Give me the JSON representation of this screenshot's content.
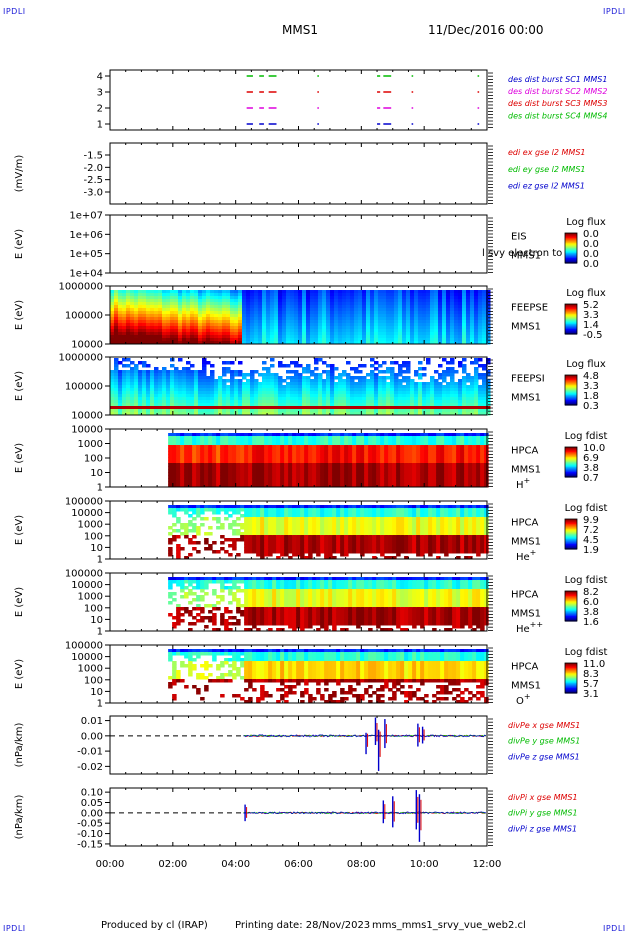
{
  "corner_label": "IPDLI",
  "header": {
    "spacecraft": "MMS1",
    "date_time": "11/Dec/2016 00:00"
  },
  "footer": {
    "produced_by": "Produced by cl (IRAP)",
    "printing_date": "Printing date: 28/Nov/2023",
    "file_name": "mms_mms1_srvy_vue_web2.cl"
  },
  "time_axis": {
    "tick_labels": [
      "00:00",
      "02:00",
      "04:00",
      "06:00",
      "08:00",
      "10:00",
      "12:00"
    ]
  },
  "chart_data": [
    {
      "type": "timeline",
      "panel": "des-dist-burst",
      "ylabel": "",
      "ytick_labels": [
        "4",
        "3",
        "2",
        "1"
      ],
      "legend": [
        {
          "label": "des dist burst SC1 MMS1",
          "color": "#0000cc"
        },
        {
          "label": "des dist burst SC2 MMS2",
          "color": "#dd00dd"
        },
        {
          "label": "des dist burst SC3 MMS3",
          "color": "#dd0000"
        },
        {
          "label": "des dist burst SC4 MMS4",
          "color": "#00bb00"
        }
      ],
      "intervals_hours": [
        [
          4.35,
          4.55
        ],
        [
          4.75,
          4.9
        ],
        [
          5.05,
          5.3
        ],
        [
          6.6,
          6.65
        ],
        [
          8.5,
          8.6
        ],
        [
          8.7,
          8.95
        ],
        [
          9.6,
          9.65
        ],
        [
          11.7,
          11.75
        ]
      ]
    },
    {
      "type": "line",
      "panel": "edi-e-gse",
      "ylabel": "(mV/m)",
      "ytick_labels": [
        "-1.5",
        "-2.0",
        "-2.5",
        "-3.0"
      ],
      "ylim": [
        -3.2,
        -1.3
      ],
      "legend": [
        {
          "label": "edi ex gse l2 MMS1",
          "color": "#dd0000"
        },
        {
          "label": "edi ey gse l2 MMS1",
          "color": "#00bb00"
        },
        {
          "label": "edi ez gse l2 MMS1",
          "color": "#0000cc"
        }
      ],
      "series": []
    },
    {
      "type": "heatmap",
      "panel": "eis",
      "ylabel": "E (eV)",
      "ytick_labels": [
        "1e+07",
        "1e+06",
        "1e+05",
        "1e+04"
      ],
      "right_labels": [
        "EIS",
        "MMS1"
      ],
      "overlay_text": "l svy electron to",
      "colorbar": {
        "title": "Log flux",
        "ticks": [
          "0.0",
          "0.0",
          "0.0",
          "0.0"
        ]
      },
      "data_extent_hours": [
        0,
        0
      ]
    },
    {
      "type": "heatmap",
      "panel": "feeps-electron",
      "ylabel": "E (eV)",
      "ytick_labels": [
        "1000000",
        "100000",
        "10000"
      ],
      "right_labels": [
        "FEEPSE",
        "MMS1"
      ],
      "colorbar": {
        "title": "Log flux",
        "ticks": [
          "5.2",
          "3.3",
          "1.4",
          "-0.5"
        ]
      },
      "data_extent_hours": [
        0,
        12
      ]
    },
    {
      "type": "heatmap",
      "panel": "feeps-ion",
      "ylabel": "E (eV)",
      "ytick_labels": [
        "1000000",
        "100000",
        "10000"
      ],
      "right_labels": [
        "FEEPSI",
        "MMS1"
      ],
      "colorbar": {
        "title": "Log flux",
        "ticks": [
          "4.8",
          "3.3",
          "1.8",
          "0.3"
        ]
      },
      "data_extent_hours": [
        0,
        12
      ]
    },
    {
      "type": "heatmap",
      "panel": "hpca-h",
      "ylabel": "E (eV)",
      "ytick_labels": [
        "10000",
        "1000",
        "100",
        "10",
        "1"
      ],
      "right_labels": [
        "HPCA",
        "MMS1",
        "H+"
      ],
      "colorbar": {
        "title": "Log fdist",
        "ticks": [
          "10.0",
          "6.9",
          "3.8",
          "0.7"
        ]
      },
      "data_extent_hours": [
        1.85,
        12
      ]
    },
    {
      "type": "heatmap",
      "panel": "hpca-he",
      "ylabel": "E (eV)",
      "ytick_labels": [
        "100000",
        "10000",
        "1000",
        "100",
        "10",
        "1"
      ],
      "right_labels": [
        "HPCA",
        "MMS1",
        "He+"
      ],
      "colorbar": {
        "title": "Log fdist",
        "ticks": [
          "9.9",
          "7.2",
          "4.5",
          "1.9"
        ]
      },
      "data_extent_hours": [
        1.85,
        12
      ]
    },
    {
      "type": "heatmap",
      "panel": "hpca-he2",
      "ylabel": "E (eV)",
      "ytick_labels": [
        "100000",
        "10000",
        "1000",
        "100",
        "10",
        "1"
      ],
      "right_labels": [
        "HPCA",
        "MMS1",
        "He++"
      ],
      "colorbar": {
        "title": "Log fdist",
        "ticks": [
          "8.2",
          "6.0",
          "3.8",
          "1.6"
        ]
      },
      "data_extent_hours": [
        1.85,
        12
      ]
    },
    {
      "type": "heatmap",
      "panel": "hpca-o",
      "ylabel": "E (eV)",
      "ytick_labels": [
        "100000",
        "10000",
        "1000",
        "100",
        "10",
        "1"
      ],
      "right_labels": [
        "HPCA",
        "MMS1",
        "O+"
      ],
      "colorbar": {
        "title": "Log fdist",
        "ticks": [
          "11.0",
          "8.3",
          "5.7",
          "3.1"
        ]
      },
      "data_extent_hours": [
        1.85,
        12
      ]
    },
    {
      "type": "line",
      "panel": "divpe",
      "ylabel": "(nPa/km)",
      "ytick_labels": [
        "0.01",
        "0.00",
        "-0.01",
        "-0.02"
      ],
      "ytick_values": [
        0.01,
        0.0,
        -0.01,
        -0.02
      ],
      "ylim": [
        -0.025,
        0.013
      ],
      "legend": [
        {
          "label": "divPe x gse MMS1",
          "color": "#dd0000"
        },
        {
          "label": "divPe y gse MMS1",
          "color": "#00bb00"
        },
        {
          "label": "divPe z gse MMS1",
          "color": "#0000cc"
        }
      ],
      "data_extent_hours": [
        4.25,
        12
      ],
      "spikes": [
        {
          "t": 8.15,
          "min": -0.012,
          "max": 0.002
        },
        {
          "t": 8.45,
          "min": -0.006,
          "max": 0.012
        },
        {
          "t": 8.55,
          "min": -0.023,
          "max": 0.004
        },
        {
          "t": 8.75,
          "min": -0.008,
          "max": 0.011
        },
        {
          "t": 9.8,
          "min": -0.007,
          "max": 0.008
        },
        {
          "t": 9.95,
          "min": -0.005,
          "max": 0.006
        }
      ]
    },
    {
      "type": "line",
      "panel": "divpi",
      "ylabel": "(nPa/km)",
      "ytick_labels": [
        "0.10",
        "0.05",
        "0.00",
        "-0.05",
        "-0.10",
        "-0.15"
      ],
      "ytick_values": [
        0.1,
        0.05,
        0.0,
        -0.05,
        -0.1,
        -0.15
      ],
      "ylim": [
        -0.16,
        0.12
      ],
      "legend": [
        {
          "label": "divPi x gse MMS1",
          "color": "#dd0000"
        },
        {
          "label": "divPi y gse MMS1",
          "color": "#00bb00"
        },
        {
          "label": "divPi z gse MMS1",
          "color": "#0000cc"
        }
      ],
      "data_extent_hours": [
        4.25,
        12
      ],
      "spikes": [
        {
          "t": 4.3,
          "min": -0.04,
          "max": 0.04
        },
        {
          "t": 8.7,
          "min": -0.05,
          "max": 0.06
        },
        {
          "t": 9.0,
          "min": -0.07,
          "max": 0.08
        },
        {
          "t": 9.75,
          "min": -0.08,
          "max": 0.11
        },
        {
          "t": 9.85,
          "min": -0.14,
          "max": 0.09
        }
      ]
    }
  ]
}
